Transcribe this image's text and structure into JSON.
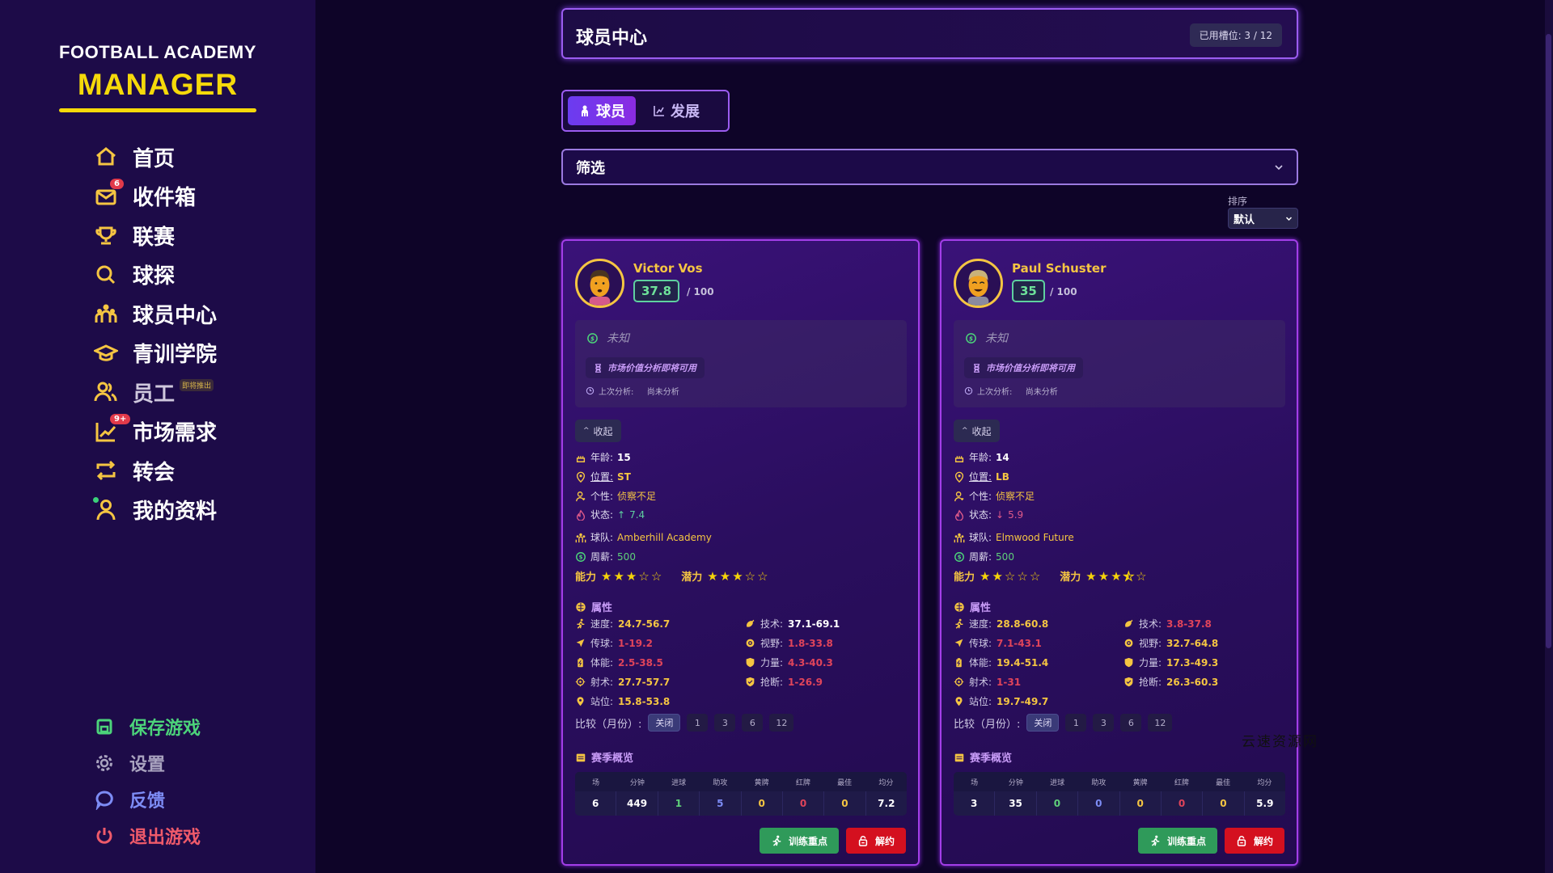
{
  "app": {
    "logo_line1": "FOOTBALL ACADEMY",
    "logo_line2": "MANAGER",
    "accent": "#f5d90a"
  },
  "sidebar": {
    "items": [
      {
        "label": "首页",
        "icon": "home-icon"
      },
      {
        "label": "收件箱",
        "icon": "mail-icon",
        "badge": "6"
      },
      {
        "label": "联赛",
        "icon": "trophy-icon"
      },
      {
        "label": "球探",
        "icon": "search-icon"
      },
      {
        "label": "球员中心",
        "icon": "team-icon"
      },
      {
        "label": "青训学院",
        "icon": "graduation-cap-icon"
      },
      {
        "label": "员工",
        "icon": "staff-icon",
        "tag": "即将推出"
      },
      {
        "label": "市场需求",
        "icon": "chart-up-icon",
        "badge": "9+"
      },
      {
        "label": "转会",
        "icon": "transfer-icon"
      },
      {
        "label": "我的资料",
        "icon": "user-icon"
      }
    ],
    "bottom": [
      {
        "label": "保存游戏",
        "icon": "save-icon",
        "color": "#4cd47a"
      },
      {
        "label": "设置",
        "icon": "gear-icon",
        "color": "#a9a3bf"
      },
      {
        "label": "反馈",
        "icon": "chat-bubble-icon",
        "color": "#7d8cf5"
      },
      {
        "label": "退出游戏",
        "icon": "power-icon",
        "color": "#ef5a6a"
      }
    ]
  },
  "header": {
    "title": "球员中心",
    "slots": "已用槽位: 3 / 12"
  },
  "tabs": [
    {
      "label": "球员",
      "icon": "team-icon",
      "active": true
    },
    {
      "label": "发展",
      "icon": "chart-line-icon",
      "active": false
    }
  ],
  "filter": {
    "label": "筛选"
  },
  "sort": {
    "label": "排序",
    "value": "默认"
  },
  "labels": {
    "out_of": "/ 100",
    "market_unknown": "未知",
    "market_soon": "市场价值分析即将可用",
    "last_analysis": "上次分析:",
    "last_analysis_value": "尚未分析",
    "collapse": "收起",
    "age": "年龄:",
    "position": "位置:",
    "personality": "个性:",
    "status": "状态:",
    "team": "球队:",
    "salary": "周薪:",
    "ability": "能力",
    "potential": "潜力",
    "attributes": "属性",
    "compare": "比较（月份）:",
    "compare_options": [
      "关闭",
      "1",
      "3",
      "6",
      "12"
    ],
    "season": "赛季概览",
    "season_headers": [
      "场",
      "分钟",
      "进球",
      "助攻",
      "黄牌",
      "红牌",
      "最佳",
      "均分"
    ],
    "season_colors": [
      "#ffffff",
      "#ffffff",
      "#5fd07a",
      "#7d8cf5",
      "#f5c542",
      "#e0445a",
      "#f5c542",
      "#ffffff"
    ],
    "train": "训练重点",
    "release": "解约"
  },
  "players": [
    {
      "name": "Victor Vos",
      "score": "37.8",
      "age": "15",
      "position": "ST",
      "personality": "侦察不足",
      "status_arrow": "↑",
      "status": "7.4",
      "status_color": "#5fd0a0",
      "team": "Amberhill Academy",
      "salary": "500",
      "ability_stars": 3,
      "potential_stars": 3,
      "attributes": [
        {
          "label": "速度:",
          "value": "24.7-56.7",
          "color": "#f5c542",
          "icon": "running-icon"
        },
        {
          "label": "技术:",
          "value": "37.1-69.1",
          "color": "#ffffff",
          "icon": "ball-icon"
        },
        {
          "label": "传球:",
          "value": "1-19.2",
          "color": "#e0445a",
          "icon": "send-icon"
        },
        {
          "label": "视野:",
          "value": "1.8-33.8",
          "color": "#e0445a",
          "icon": "eye-icon"
        },
        {
          "label": "体能:",
          "value": "2.5-38.5",
          "color": "#e0445a",
          "icon": "battery-icon"
        },
        {
          "label": "力量:",
          "value": "4.3-40.3",
          "color": "#e0445a",
          "icon": "shield-icon"
        },
        {
          "label": "射术:",
          "value": "27.7-57.7",
          "color": "#f5c542",
          "icon": "crosshair-icon"
        },
        {
          "label": "抢断:",
          "value": "1-26.9",
          "color": "#e0445a",
          "icon": "shield-check-icon"
        },
        {
          "label": "站位:",
          "value": "15.8-53.8",
          "color": "#f5c542",
          "icon": "location-icon"
        }
      ],
      "season": [
        "6",
        "449",
        "1",
        "5",
        "0",
        "0",
        "0",
        "7.2"
      ]
    },
    {
      "name": "Paul Schuster",
      "score": "35",
      "age": "14",
      "position": "LB",
      "personality": "侦察不足",
      "status_arrow": "↓",
      "status": "5.9",
      "status_color": "#e05a8a",
      "team": "Elmwood Future",
      "salary": "500",
      "ability_stars": 2,
      "potential_stars": 3.5,
      "attributes": [
        {
          "label": "速度:",
          "value": "28.8-60.8",
          "color": "#f5c542",
          "icon": "running-icon"
        },
        {
          "label": "技术:",
          "value": "3.8-37.8",
          "color": "#e0445a",
          "icon": "ball-icon"
        },
        {
          "label": "传球:",
          "value": "7.1-43.1",
          "color": "#e0445a",
          "icon": "send-icon"
        },
        {
          "label": "视野:",
          "value": "32.7-64.8",
          "color": "#f5c542",
          "icon": "eye-icon"
        },
        {
          "label": "体能:",
          "value": "19.4-51.4",
          "color": "#f5c542",
          "icon": "battery-icon"
        },
        {
          "label": "力量:",
          "value": "17.3-49.3",
          "color": "#f5c542",
          "icon": "shield-icon"
        },
        {
          "label": "射术:",
          "value": "1-31",
          "color": "#e0445a",
          "icon": "crosshair-icon"
        },
        {
          "label": "抢断:",
          "value": "26.3-60.3",
          "color": "#f5c542",
          "icon": "shield-check-icon"
        },
        {
          "label": "站位:",
          "value": "19.7-49.7",
          "color": "#f5c542",
          "icon": "location-icon"
        }
      ],
      "season": [
        "3",
        "35",
        "0",
        "0",
        "0",
        "0",
        "0",
        "5.9"
      ]
    }
  ],
  "watermark": "云速资源网"
}
